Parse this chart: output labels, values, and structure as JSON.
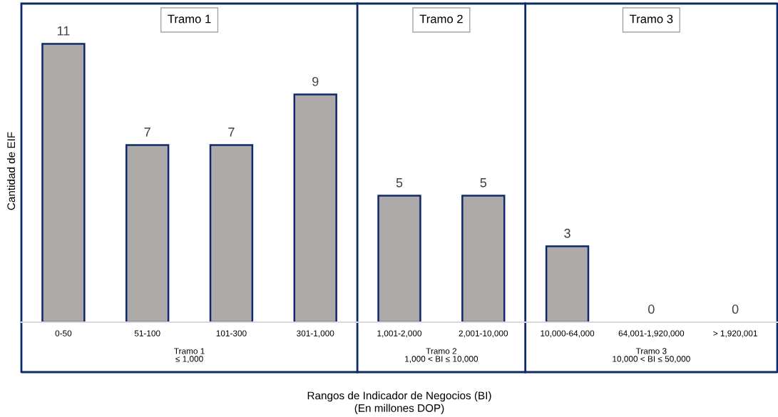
{
  "chart_data": {
    "type": "bar",
    "xlabel": "Rangos de Indicador de Negocios (BI)\n(En millones DOP)",
    "ylabel": "Cantidad de EIF",
    "categories": [
      "0-50",
      "51-100",
      "101-300",
      "301-1,000",
      "1,001-2,000",
      "2,001-10,000",
      "10,000-64,000",
      "64,001-1,920,000",
      "> 1,920,001"
    ],
    "values": [
      11,
      7,
      7,
      9,
      5,
      5,
      3,
      0,
      0
    ],
    "color": "#aeaaaa",
    "data_labels": true,
    "grid": false,
    "legend": false,
    "tick_labels": "x",
    "annotations": [
      "Tramo 1",
      "Tramo 2",
      "Tramo 3",
      "Tramo 1\n≤ 1,000",
      "Tramo 2\n1,000 < BI ≤ 10,000",
      "Tramo 3\n10,000 < BI ≤ 50,000"
    ]
  }
}
